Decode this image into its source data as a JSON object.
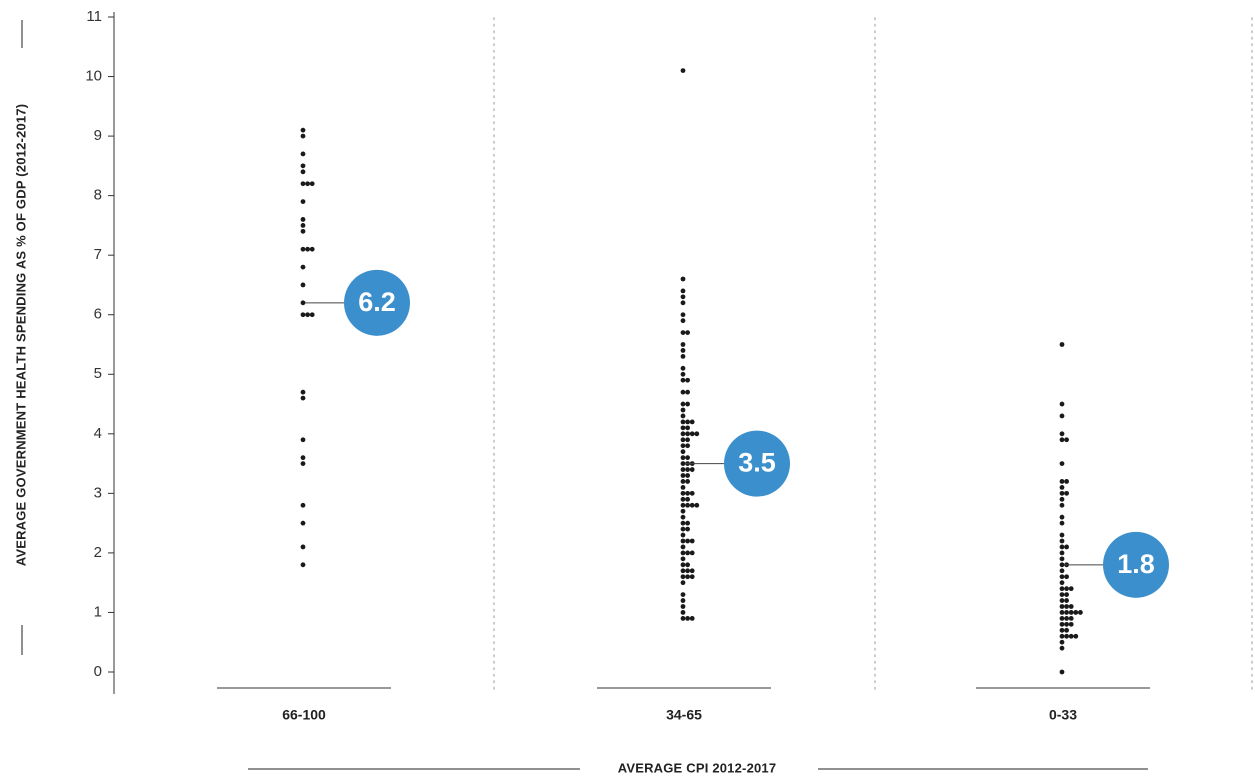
{
  "chart_data": {
    "type": "scatter",
    "subtype": "dot-strip",
    "ylabel": "AVERAGE GOVERNMENT HEALTH SPENDING AS % OF GDP (2012-2017)",
    "xlabel": "AVERAGE CPI 2012-2017",
    "ylim": [
      0,
      11
    ],
    "yticks": [
      0,
      1,
      2,
      3,
      4,
      5,
      6,
      7,
      8,
      9,
      10,
      11
    ],
    "grid": "dotted vertical separators between groups",
    "dot_color": "#1a1a1a",
    "bubble_color": "#3b8fcd",
    "groups": [
      {
        "category": "66-100",
        "average": 6.2,
        "average_label": "6.2",
        "values": [
          9.1,
          9.0,
          8.7,
          8.5,
          8.4,
          8.2,
          8.2,
          8.2,
          7.9,
          7.6,
          7.5,
          7.4,
          7.1,
          7.1,
          7.1,
          6.8,
          6.5,
          6.2,
          6.0,
          6.0,
          6.0,
          4.7,
          4.6,
          3.9,
          3.6,
          3.5,
          2.8,
          2.5,
          2.1,
          1.8
        ]
      },
      {
        "category": "34-65",
        "average": 3.5,
        "average_label": "3.5",
        "values": [
          10.1,
          6.6,
          6.4,
          6.3,
          6.2,
          6.0,
          5.9,
          5.7,
          5.7,
          5.5,
          5.4,
          5.3,
          5.1,
          5.0,
          4.9,
          4.9,
          4.7,
          4.7,
          4.5,
          4.5,
          4.4,
          4.3,
          4.2,
          4.2,
          4.2,
          4.1,
          4.1,
          4.0,
          4.0,
          4.0,
          4.0,
          3.9,
          3.9,
          3.8,
          3.8,
          3.7,
          3.6,
          3.6,
          3.5,
          3.5,
          3.5,
          3.4,
          3.4,
          3.4,
          3.3,
          3.3,
          3.2,
          3.2,
          3.1,
          3.0,
          3.0,
          3.0,
          2.9,
          2.9,
          2.8,
          2.8,
          2.8,
          2.8,
          2.7,
          2.6,
          2.5,
          2.5,
          2.4,
          2.4,
          2.3,
          2.2,
          2.2,
          2.2,
          2.1,
          2.0,
          2.0,
          2.0,
          1.9,
          1.8,
          1.8,
          1.7,
          1.7,
          1.7,
          1.6,
          1.6,
          1.6,
          1.5,
          1.3,
          1.2,
          1.1,
          1.0,
          0.9,
          0.9,
          0.9
        ]
      },
      {
        "category": "0-33",
        "average": 1.8,
        "average_label": "1.8",
        "values": [
          5.5,
          4.5,
          4.3,
          4.0,
          3.9,
          3.9,
          3.5,
          3.2,
          3.2,
          3.1,
          3.0,
          3.0,
          2.9,
          2.8,
          2.6,
          2.5,
          2.3,
          2.2,
          2.1,
          2.1,
          2.0,
          1.9,
          1.8,
          1.8,
          1.7,
          1.6,
          1.6,
          1.5,
          1.4,
          1.4,
          1.4,
          1.3,
          1.3,
          1.2,
          1.2,
          1.1,
          1.1,
          1.1,
          1.0,
          1.0,
          1.0,
          1.0,
          1.0,
          0.9,
          0.9,
          0.9,
          0.8,
          0.8,
          0.8,
          0.7,
          0.7,
          0.6,
          0.6,
          0.6,
          0.6,
          0.5,
          0.4,
          0.0
        ]
      }
    ]
  }
}
